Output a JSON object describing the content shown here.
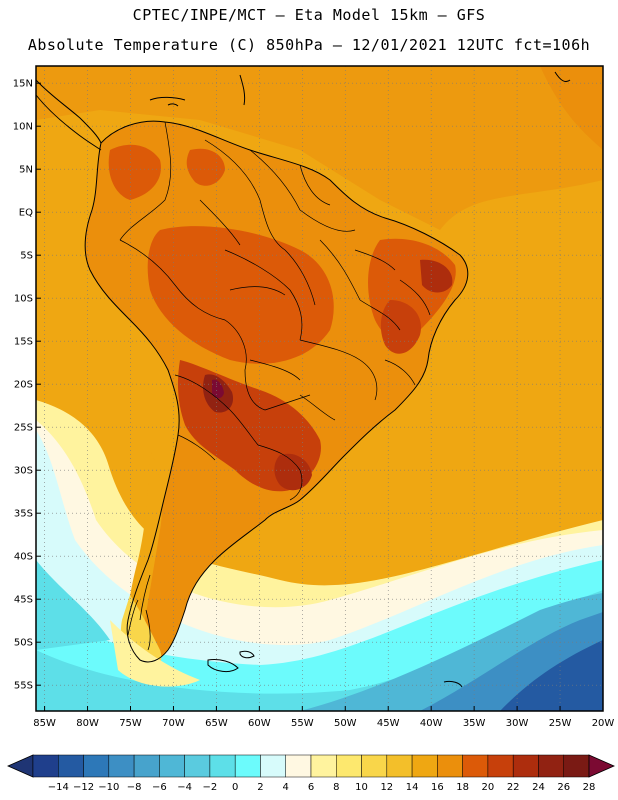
{
  "header": {
    "line1": "CPTEC/INPE/MCT –  Eta Model 15km – GFS",
    "line2": "Absolute Temperature (C) 850hPa – 12/01/2021 12UTC fct=106h"
  },
  "axes": {
    "lat_labels": [
      "15N",
      "10N",
      "5N",
      "EQ",
      "5S",
      "10S",
      "15S",
      "20S",
      "25S",
      "30S",
      "35S",
      "40S",
      "45S",
      "50S",
      "55S"
    ],
    "lat_values": [
      15,
      10,
      5,
      0,
      -5,
      -10,
      -15,
      -20,
      -25,
      -30,
      -35,
      -40,
      -45,
      -50,
      -55
    ],
    "lon_labels": [
      "85W",
      "80W",
      "75W",
      "70W",
      "65W",
      "60W",
      "55W",
      "50W",
      "45W",
      "40W",
      "35W",
      "30W",
      "25W",
      "20W"
    ],
    "lon_values": [
      -85,
      -80,
      -75,
      -70,
      -65,
      -60,
      -55,
      -50,
      -45,
      -40,
      -35,
      -30,
      -25,
      -20
    ],
    "lon_range": [
      -86,
      -20
    ],
    "lat_range": [
      -58,
      17
    ]
  },
  "colorbar": {
    "labels": [
      "-14",
      "-12",
      "-10",
      "-8",
      "-6",
      "-4",
      "-2",
      "0",
      "2",
      "4",
      "6",
      "8",
      "10",
      "12",
      "14",
      "16",
      "18",
      "20",
      "22",
      "24",
      "26",
      "28"
    ],
    "colors": [
      "#1f3f8c",
      "#245aa2",
      "#2d78b8",
      "#3d8fc4",
      "#47a3cc",
      "#4fb7d6",
      "#5acbdf",
      "#5ddfe8",
      "#6cfbfc",
      "#d7fbfb",
      "#fff8e2",
      "#fff39e",
      "#fde86e",
      "#f9d64a",
      "#f3bf2a",
      "#efa712",
      "#eb8f0c",
      "#dc5a08",
      "#c7400b",
      "#ad2d0d",
      "#912212",
      "#7a1a14"
    ],
    "low_color": "#1f3574",
    "high_color": "#7b0a32"
  }
}
